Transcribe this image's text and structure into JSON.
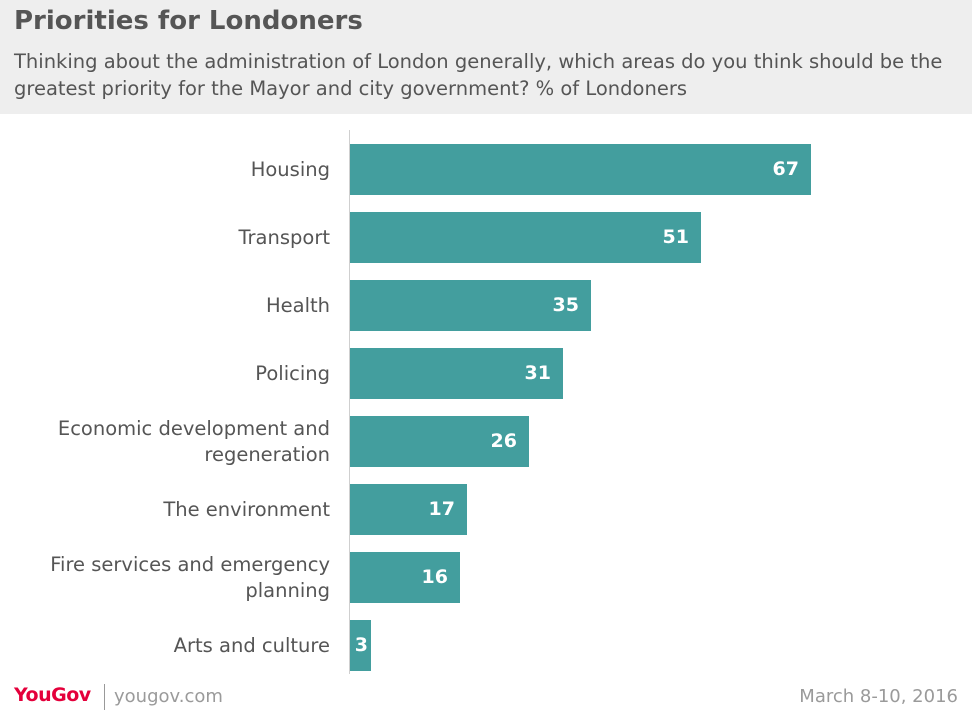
{
  "header": {
    "title": "Priorities for Londoners",
    "subtitle": "Thinking about the administration of London generally, which areas do you think should be the greatest priority for the Mayor and city government? % of Londoners"
  },
  "footer": {
    "logo": "YouGov",
    "site": "yougov.com",
    "date": "March 8-10, 2016"
  },
  "colors": {
    "bar": "#439e9e",
    "logo": "#e4003b"
  },
  "chart_data": {
    "type": "bar",
    "orientation": "horizontal",
    "title": "Priorities for Londoners",
    "subtitle": "Thinking about the administration of London generally, which areas do you think should be the greatest priority for the Mayor and city government? % of Londoners",
    "categories": [
      "Housing",
      "Transport",
      "Health",
      "Policing",
      "Economic development and regeneration",
      "The environment",
      "Fire services and emergency planning",
      "Arts and culture"
    ],
    "category_lines": [
      [
        "Housing"
      ],
      [
        "Transport"
      ],
      [
        "Health"
      ],
      [
        "Policing"
      ],
      [
        "Economic development and",
        "regeneration"
      ],
      [
        "The environment"
      ],
      [
        "Fire services and emergency",
        "planning"
      ],
      [
        "Arts and culture"
      ]
    ],
    "values": [
      67,
      51,
      35,
      31,
      26,
      17,
      16,
      3
    ],
    "xlim": [
      0,
      67
    ],
    "grid": false,
    "legend": "none"
  }
}
